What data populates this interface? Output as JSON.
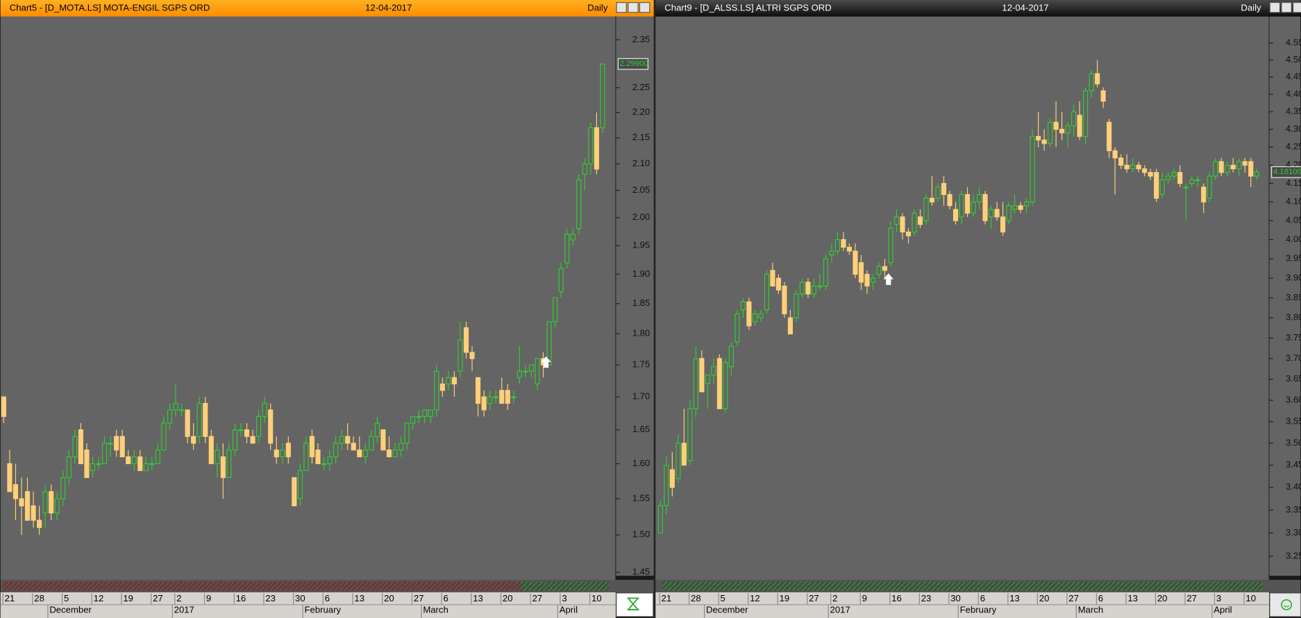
{
  "chart_data": [
    {
      "type": "candlestick",
      "title": "Chart5 - [D_MOTA.LS] MOTA-ENGIL SGPS ORD",
      "date": "12-04-2017",
      "period": "Daily",
      "log_scale": true,
      "up_color": "#33cc33",
      "down_color": "#ffcf7a",
      "ylim": [
        1.44,
        2.4
      ],
      "yticks": [
        2.35,
        2.25,
        {
          "value": 2.2,
          "label": "2.20"
        },
        2.15,
        {
          "value": 2.1,
          "label": "2.10"
        },
        2.05,
        {
          "value": 2,
          "label": "2.00"
        },
        1.95,
        {
          "value": 1.9,
          "label": "1.90"
        },
        1.85,
        {
          "value": 1.8,
          "label": "1.80"
        },
        1.75,
        {
          "value": 1.7,
          "label": "1.70"
        },
        1.65,
        {
          "value": 1.6,
          "label": "1.60"
        },
        1.55,
        {
          "value": 1.5,
          "label": "1.50"
        },
        1.45
      ],
      "last_price": {
        "value": 2.299,
        "label": "2.29900"
      },
      "categories": [
        "21",
        null,
        null,
        null,
        null,
        "28",
        null,
        null,
        null,
        null,
        "5",
        null,
        null,
        null,
        null,
        "12",
        null,
        null,
        null,
        null,
        "19",
        null,
        null,
        null,
        null,
        "27",
        null,
        null,
        null,
        "2",
        null,
        null,
        null,
        null,
        "9",
        null,
        null,
        null,
        null,
        "16",
        null,
        null,
        null,
        null,
        "23",
        null,
        null,
        null,
        null,
        "30",
        null,
        null,
        null,
        null,
        "6",
        null,
        null,
        null,
        null,
        "13",
        null,
        null,
        null,
        null,
        "20",
        null,
        null,
        null,
        null,
        "27",
        null,
        null,
        null,
        null,
        "6",
        null,
        null,
        null,
        null,
        "13",
        null,
        null,
        null,
        null,
        "20",
        null,
        null,
        null,
        null,
        "27",
        null,
        null,
        null,
        null,
        "3",
        null,
        null,
        null,
        null,
        "10",
        null,
        null
      ],
      "months": [
        null,
        null,
        null,
        null,
        null,
        null,
        null,
        null,
        "December",
        null,
        null,
        null,
        null,
        null,
        null,
        null,
        null,
        null,
        null,
        null,
        null,
        null,
        null,
        null,
        null,
        null,
        null,
        null,
        null,
        "2017",
        null,
        null,
        null,
        null,
        null,
        null,
        null,
        null,
        null,
        null,
        null,
        null,
        null,
        null,
        null,
        null,
        null,
        null,
        null,
        null,
        null,
        "February",
        null,
        null,
        null,
        null,
        null,
        null,
        null,
        null,
        null,
        null,
        null,
        null,
        null,
        null,
        null,
        null,
        null,
        null,
        null,
        "March",
        null,
        null,
        null,
        null,
        null,
        null,
        null,
        null,
        null,
        null,
        null,
        null,
        null,
        null,
        null,
        null,
        null,
        null,
        null,
        null,
        null,
        null,
        "April",
        null,
        null,
        null,
        null,
        null,
        null,
        null
      ],
      "open": [
        1.7,
        1.6,
        1.57,
        1.55,
        1.56,
        1.54,
        1.52,
        1.53,
        1.56,
        1.53,
        1.55,
        1.58,
        1.61,
        1.65,
        1.62,
        1.59,
        1.6,
        1.6,
        1.63,
        1.64,
        1.64,
        1.61,
        1.6,
        1.61,
        1.59,
        1.6,
        1.6,
        1.62,
        1.66,
        1.68,
        1.68,
        1.68,
        1.64,
        1.64,
        1.69,
        1.64,
        1.6,
        1.61,
        1.58,
        1.62,
        1.65,
        1.65,
        1.64,
        1.64,
        1.67,
        1.68,
        1.62,
        1.61,
        1.63,
        1.58,
        1.55,
        1.59,
        1.64,
        1.62,
        1.6,
        1.6,
        1.61,
        1.63,
        1.64,
        1.63,
        1.62,
        1.61,
        1.62,
        1.64,
        1.65,
        1.62,
        1.61,
        1.62,
        1.63,
        1.66,
        1.67,
        1.67,
        1.67,
        1.68,
        1.72,
        1.72,
        1.73,
        1.74,
        1.81,
        1.77,
        1.73,
        1.7,
        1.69,
        1.7,
        1.71,
        1.71,
        1.7,
        1.73,
        1.74,
        1.74,
        1.72,
        1.76,
        1.75,
        1.82,
        1.87,
        1.92,
        1.96,
        1.98,
        2.08,
        2.1,
        2.17,
        2.17
      ],
      "high": [
        1.7,
        1.62,
        1.6,
        1.58,
        1.58,
        1.56,
        1.54,
        1.57,
        1.57,
        1.56,
        1.59,
        1.62,
        1.65,
        1.66,
        1.63,
        1.61,
        1.61,
        1.64,
        1.64,
        1.65,
        1.65,
        1.62,
        1.62,
        1.62,
        1.61,
        1.61,
        1.63,
        1.67,
        1.69,
        1.72,
        1.69,
        1.68,
        1.66,
        1.7,
        1.7,
        1.65,
        1.63,
        1.63,
        1.63,
        1.66,
        1.66,
        1.66,
        1.65,
        1.68,
        1.7,
        1.69,
        1.64,
        1.63,
        1.64,
        1.58,
        1.6,
        1.64,
        1.65,
        1.63,
        1.61,
        1.62,
        1.64,
        1.65,
        1.66,
        1.64,
        1.64,
        1.63,
        1.65,
        1.67,
        1.65,
        1.64,
        1.63,
        1.64,
        1.66,
        1.67,
        1.68,
        1.68,
        1.68,
        1.75,
        1.73,
        1.74,
        1.74,
        1.82,
        1.82,
        1.78,
        1.73,
        1.71,
        1.71,
        1.71,
        1.73,
        1.72,
        1.71,
        1.78,
        1.75,
        1.75,
        1.76,
        1.77,
        1.82,
        1.86,
        1.92,
        1.98,
        1.98,
        2.08,
        2.11,
        2.18,
        2.2,
        2.3
      ],
      "low": [
        1.66,
        1.56,
        1.52,
        1.5,
        1.52,
        1.51,
        1.5,
        1.51,
        1.52,
        1.52,
        1.54,
        1.57,
        1.6,
        1.6,
        1.58,
        1.58,
        1.59,
        1.6,
        1.61,
        1.61,
        1.61,
        1.6,
        1.59,
        1.59,
        1.59,
        1.59,
        1.6,
        1.62,
        1.65,
        1.67,
        1.67,
        1.63,
        1.62,
        1.63,
        1.63,
        1.6,
        1.58,
        1.55,
        1.58,
        1.61,
        1.64,
        1.63,
        1.63,
        1.63,
        1.66,
        1.62,
        1.6,
        1.6,
        1.6,
        1.54,
        1.54,
        1.59,
        1.6,
        1.6,
        1.59,
        1.59,
        1.6,
        1.62,
        1.62,
        1.62,
        1.61,
        1.6,
        1.62,
        1.63,
        1.62,
        1.61,
        1.61,
        1.61,
        1.62,
        1.65,
        1.66,
        1.66,
        1.66,
        1.67,
        1.7,
        1.71,
        1.7,
        1.73,
        1.76,
        1.74,
        1.67,
        1.67,
        1.68,
        1.69,
        1.69,
        1.68,
        1.69,
        1.72,
        1.73,
        1.73,
        1.71,
        1.73,
        1.75,
        1.81,
        1.86,
        1.91,
        1.95,
        1.97,
        2.05,
        2.08,
        2.08,
        2.16
      ],
      "close": [
        1.67,
        1.56,
        1.55,
        1.54,
        1.52,
        1.52,
        1.51,
        1.56,
        1.53,
        1.55,
        1.58,
        1.61,
        1.64,
        1.6,
        1.58,
        1.6,
        1.6,
        1.63,
        1.63,
        1.62,
        1.61,
        1.6,
        1.61,
        1.59,
        1.6,
        1.6,
        1.62,
        1.66,
        1.68,
        1.69,
        1.68,
        1.64,
        1.63,
        1.69,
        1.64,
        1.6,
        1.62,
        1.58,
        1.62,
        1.65,
        1.65,
        1.64,
        1.63,
        1.67,
        1.69,
        1.63,
        1.61,
        1.62,
        1.61,
        1.54,
        1.59,
        1.63,
        1.61,
        1.6,
        1.6,
        1.61,
        1.63,
        1.64,
        1.63,
        1.62,
        1.61,
        1.62,
        1.64,
        1.66,
        1.62,
        1.61,
        1.62,
        1.63,
        1.66,
        1.67,
        1.67,
        1.68,
        1.68,
        1.74,
        1.71,
        1.73,
        1.72,
        1.79,
        1.77,
        1.76,
        1.69,
        1.68,
        1.7,
        1.7,
        1.69,
        1.69,
        1.7,
        1.74,
        1.74,
        1.75,
        1.76,
        1.75,
        1.82,
        1.86,
        1.91,
        1.97,
        1.97,
        2.07,
        2.1,
        2.17,
        2.09,
        2.299
      ]
    },
    {
      "type": "candlestick",
      "title": "Chart9 - [D_ALSS.LS] ALTRI SGPS ORD",
      "date": "12-04-2017",
      "period": "Daily",
      "log_scale": true,
      "up_color": "#33cc33",
      "down_color": "#ffcf7a",
      "ylim": [
        3.2,
        4.63
      ],
      "yticks": [
        4.55,
        {
          "value": 4.5,
          "label": "4.50"
        },
        4.45,
        {
          "value": 4.4,
          "label": "4.40"
        },
        4.35,
        {
          "value": 4.3,
          "label": "4.30"
        },
        4.25,
        {
          "value": 4.2,
          "label": "4.20"
        },
        4.15,
        {
          "value": 4.1,
          "label": "4.10"
        },
        4.05,
        {
          "value": 4,
          "label": "4.00"
        },
        3.95,
        {
          "value": 3.9,
          "label": "3.90"
        },
        3.85,
        {
          "value": 3.8,
          "label": "3.80"
        },
        3.75,
        {
          "value": 3.7,
          "label": "3.70"
        },
        3.65,
        {
          "value": 3.6,
          "label": "3.60"
        },
        3.55,
        {
          "value": 3.5,
          "label": "3.50"
        },
        3.45,
        {
          "value": 3.4,
          "label": "3.40"
        },
        3.35,
        {
          "value": 3.3,
          "label": "3.30"
        },
        3.25
      ],
      "last_price": {
        "value": 4.181,
        "label": "4.18100"
      },
      "categories": [
        "21",
        null,
        null,
        null,
        null,
        "28",
        null,
        null,
        null,
        null,
        "5",
        null,
        null,
        null,
        null,
        "12",
        null,
        null,
        null,
        null,
        "19",
        null,
        null,
        null,
        null,
        "27",
        null,
        null,
        null,
        "2",
        null,
        null,
        null,
        null,
        "9",
        null,
        null,
        null,
        null,
        "16",
        null,
        null,
        null,
        null,
        "23",
        null,
        null,
        null,
        null,
        "30",
        null,
        null,
        null,
        null,
        "6",
        null,
        null,
        null,
        null,
        "13",
        null,
        null,
        null,
        null,
        "20",
        null,
        null,
        null,
        null,
        "27",
        null,
        null,
        null,
        null,
        "6",
        null,
        null,
        null,
        null,
        "13",
        null,
        null,
        null,
        null,
        "20",
        null,
        null,
        null,
        null,
        "27",
        null,
        null,
        null,
        null,
        "3",
        null,
        null,
        null,
        null,
        "10",
        null,
        null
      ],
      "months": [
        null,
        null,
        null,
        null,
        null,
        null,
        null,
        null,
        "December",
        null,
        null,
        null,
        null,
        null,
        null,
        null,
        null,
        null,
        null,
        null,
        null,
        null,
        null,
        null,
        null,
        null,
        null,
        null,
        null,
        "2017",
        null,
        null,
        null,
        null,
        null,
        null,
        null,
        null,
        null,
        null,
        null,
        null,
        null,
        null,
        null,
        null,
        null,
        null,
        null,
        null,
        null,
        "February",
        null,
        null,
        null,
        null,
        null,
        null,
        null,
        null,
        null,
        null,
        null,
        null,
        null,
        null,
        null,
        null,
        null,
        null,
        null,
        "March",
        null,
        null,
        null,
        null,
        null,
        null,
        null,
        null,
        null,
        null,
        null,
        null,
        null,
        null,
        null,
        null,
        null,
        null,
        null,
        null,
        null,
        null,
        "April",
        null,
        null,
        null,
        null,
        null,
        null,
        null
      ],
      "open": [
        3.3,
        3.36,
        3.44,
        3.42,
        3.5,
        3.46,
        3.58,
        3.7,
        3.64,
        3.66,
        3.7,
        3.58,
        3.68,
        3.74,
        3.82,
        3.84,
        3.79,
        3.8,
        3.82,
        3.92,
        3.9,
        3.88,
        3.8,
        3.8,
        3.86,
        3.89,
        3.86,
        3.88,
        3.88,
        3.96,
        3.97,
        4.0,
        3.98,
        3.97,
        3.94,
        3.91,
        3.89,
        3.91,
        3.93,
        3.94,
        4.04,
        4.06,
        4.02,
        4.02,
        4.06,
        4.05,
        4.11,
        4.11,
        4.15,
        4.12,
        4.08,
        4.06,
        4.12,
        4.07,
        4.1,
        4.12,
        4.06,
        4.08,
        4.06,
        4.05,
        4.08,
        4.09,
        4.09,
        4.1,
        4.28,
        4.27,
        4.26,
        4.32,
        4.3,
        4.29,
        4.31,
        4.34,
        4.28,
        4.41,
        4.46,
        4.41,
        4.32,
        4.24,
        4.22,
        4.2,
        4.19,
        4.2,
        4.19,
        4.18,
        4.18,
        4.12,
        4.16,
        4.17,
        4.18,
        4.14,
        4.15,
        4.16,
        4.14,
        4.11,
        4.17,
        4.21,
        4.18,
        4.2,
        4.19,
        4.21,
        4.21,
        4.17
      ],
      "high": [
        3.37,
        3.47,
        3.48,
        3.52,
        3.58,
        3.6,
        3.73,
        3.72,
        3.66,
        3.7,
        3.71,
        3.7,
        3.74,
        3.82,
        3.85,
        3.85,
        3.82,
        3.82,
        3.92,
        3.94,
        3.91,
        3.89,
        3.82,
        3.87,
        3.9,
        3.9,
        3.9,
        3.91,
        3.96,
        3.99,
        4.02,
        4.02,
        3.99,
        3.99,
        3.96,
        3.92,
        3.91,
        3.94,
        3.95,
        4.05,
        4.08,
        4.07,
        4.03,
        4.08,
        4.08,
        4.12,
        4.17,
        4.15,
        4.17,
        4.13,
        4.1,
        4.13,
        4.14,
        4.12,
        4.14,
        4.13,
        4.09,
        4.1,
        4.1,
        4.1,
        4.12,
        4.1,
        4.11,
        4.3,
        4.35,
        4.3,
        4.33,
        4.38,
        4.35,
        4.32,
        4.37,
        4.38,
        4.42,
        4.47,
        4.5,
        4.42,
        4.33,
        4.25,
        4.23,
        4.23,
        4.22,
        4.21,
        4.2,
        4.19,
        4.19,
        4.18,
        4.18,
        4.19,
        4.2,
        4.15,
        4.17,
        4.17,
        4.15,
        4.18,
        4.22,
        4.22,
        4.21,
        4.22,
        4.22,
        4.22,
        4.22,
        4.19
      ],
      "low": [
        3.3,
        3.34,
        3.38,
        3.41,
        3.45,
        3.45,
        3.56,
        3.62,
        3.58,
        3.64,
        3.58,
        3.57,
        3.66,
        3.73,
        3.8,
        3.77,
        3.78,
        3.79,
        3.81,
        3.88,
        3.86,
        3.8,
        3.76,
        3.79,
        3.85,
        3.85,
        3.85,
        3.87,
        3.87,
        3.94,
        3.96,
        3.97,
        3.96,
        3.9,
        3.87,
        3.86,
        3.87,
        3.9,
        3.9,
        3.93,
        4.02,
        4.0,
        3.99,
        4.01,
        4.03,
        4.04,
        4.09,
        4.1,
        4.09,
        4.08,
        4.04,
        4.04,
        4.06,
        4.06,
        4.08,
        4.04,
        4.03,
        4.05,
        4.01,
        4.04,
        4.07,
        4.07,
        4.07,
        4.09,
        4.25,
        4.24,
        4.25,
        4.25,
        4.27,
        4.25,
        4.28,
        4.27,
        4.26,
        4.39,
        4.42,
        4.36,
        4.22,
        4.12,
        4.19,
        4.18,
        4.18,
        4.18,
        4.17,
        4.16,
        4.1,
        4.11,
        4.15,
        4.16,
        4.14,
        4.05,
        4.14,
        4.14,
        4.07,
        4.1,
        4.16,
        4.17,
        4.17,
        4.18,
        4.17,
        4.18,
        4.14,
        4.16
      ],
      "close": [
        3.36,
        3.45,
        3.4,
        3.5,
        3.45,
        3.58,
        3.7,
        3.62,
        3.66,
        3.68,
        3.58,
        3.69,
        3.73,
        3.81,
        3.84,
        3.78,
        3.81,
        3.81,
        3.91,
        3.88,
        3.87,
        3.81,
        3.76,
        3.86,
        3.89,
        3.86,
        3.88,
        3.88,
        3.95,
        3.97,
        4.0,
        3.98,
        3.97,
        3.91,
        3.89,
        3.88,
        3.9,
        3.93,
        3.92,
        4.03,
        4.06,
        4.02,
        4.01,
        4.07,
        4.04,
        4.11,
        4.1,
        4.14,
        4.12,
        4.09,
        4.05,
        4.12,
        4.07,
        4.1,
        4.12,
        4.05,
        4.08,
        4.06,
        4.02,
        4.09,
        4.09,
        4.08,
        4.1,
        4.28,
        4.27,
        4.26,
        4.32,
        4.3,
        4.29,
        4.31,
        4.35,
        4.28,
        4.41,
        4.46,
        4.43,
        4.38,
        4.24,
        4.22,
        4.2,
        4.19,
        4.2,
        4.19,
        4.18,
        4.17,
        4.11,
        4.16,
        4.17,
        4.18,
        4.15,
        4.14,
        4.16,
        4.16,
        4.1,
        4.17,
        4.21,
        4.18,
        4.2,
        4.19,
        4.21,
        4.2,
        4.17,
        4.181
      ]
    }
  ]
}
